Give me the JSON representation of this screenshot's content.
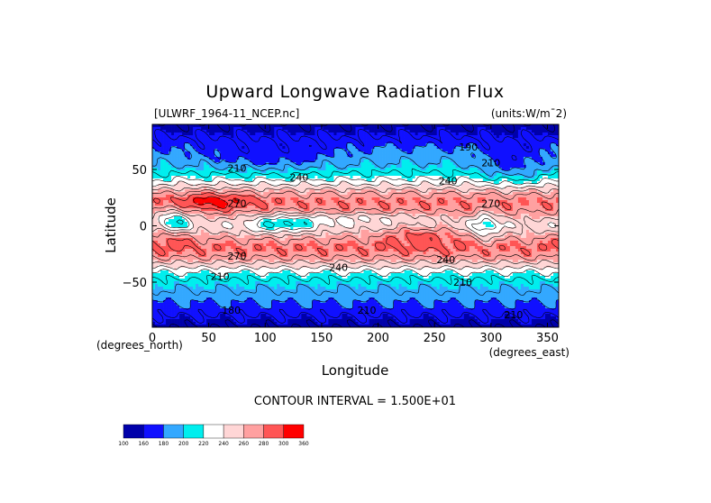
{
  "chart_data": {
    "type": "heatmap",
    "title": "Upward Longwave Radiation Flux",
    "dataset_label": "[ULWRF_1964-11_NCEP.nc]",
    "units_label": "(units:W/m¯2)",
    "xlabel": "Longitude",
    "ylabel": "Latitude",
    "x_unit_label": "(degrees_east)",
    "y_unit_label": "(degrees_north)",
    "x_ticks": [
      0,
      50,
      100,
      150,
      200,
      250,
      300,
      350
    ],
    "y_ticks": [
      -50,
      0,
      50
    ],
    "xlim": [
      0,
      360
    ],
    "ylim": [
      -90,
      90
    ],
    "contour_interval_text": "CONTOUR INTERVAL = 1.500E+01",
    "color_levels": [
      100,
      160,
      180,
      200,
      220,
      240,
      260,
      280,
      300,
      360
    ],
    "color_level_labels": [
      "100",
      "160",
      "180",
      "200",
      "220",
      "240",
      "260",
      "280",
      "300",
      "360"
    ],
    "palette": [
      "#0000aa",
      "#1010ff",
      "#33a8ff",
      "#00eeee",
      "#ffffff",
      "#ffd6d6",
      "#ffa0a0",
      "#ff5555",
      "#ff0000"
    ],
    "contour_labels": [
      {
        "lon": 280,
        "lat": 67,
        "text": "190"
      },
      {
        "lon": 300,
        "lat": 53,
        "text": "210"
      },
      {
        "lon": 75,
        "lat": 48,
        "text": "210"
      },
      {
        "lon": 130,
        "lat": 40,
        "text": "240"
      },
      {
        "lon": 262,
        "lat": 37,
        "text": "240"
      },
      {
        "lon": 300,
        "lat": 17,
        "text": "270"
      },
      {
        "lon": 75,
        "lat": 17,
        "text": "270"
      },
      {
        "lon": 75,
        "lat": -30,
        "text": "270"
      },
      {
        "lon": 165,
        "lat": -40,
        "text": "240"
      },
      {
        "lon": 260,
        "lat": -33,
        "text": "240"
      },
      {
        "lon": 60,
        "lat": -48,
        "text": "210"
      },
      {
        "lon": 275,
        "lat": -53,
        "text": "210"
      },
      {
        "lon": 190,
        "lat": -78,
        "text": "210"
      },
      {
        "lon": 70,
        "lat": -78,
        "text": "180"
      },
      {
        "lon": 320,
        "lat": -82,
        "text": "210"
      }
    ]
  }
}
